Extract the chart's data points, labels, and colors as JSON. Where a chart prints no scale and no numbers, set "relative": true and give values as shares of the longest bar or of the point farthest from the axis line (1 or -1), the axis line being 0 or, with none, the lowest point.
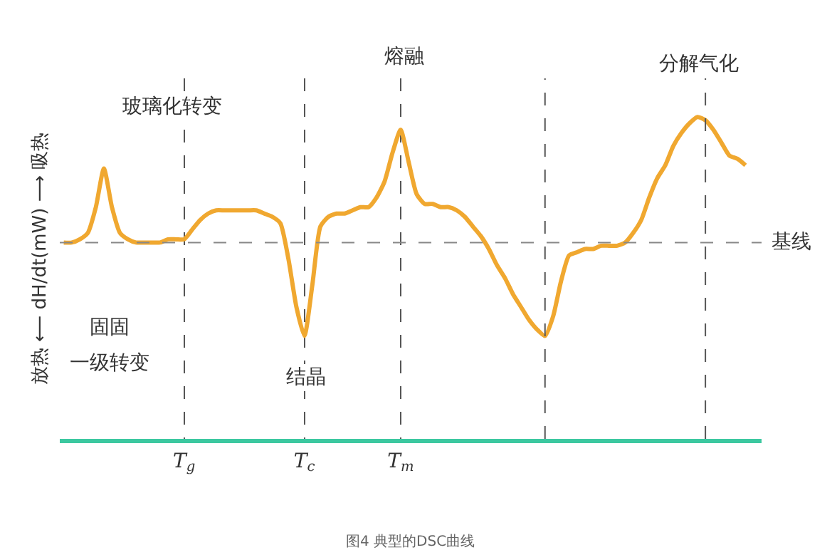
{
  "chart_data": {
    "type": "line",
    "relative": true,
    "ylabel": "放热 ⟵ dH/dt(mW) ⟶ 吸热",
    "categories": [
      null,
      null,
      null,
      null,
      null,
      null,
      null,
      null,
      null,
      null,
      null,
      null,
      null,
      null,
      null,
      "T$_{g}$",
      null,
      null,
      null,
      null,
      null,
      null,
      null,
      null,
      null,
      null,
      null,
      null,
      null,
      null,
      "T$_{c}$",
      null,
      null,
      null,
      null,
      null,
      null,
      null,
      null,
      null,
      null,
      null,
      "T$_{m}$",
      null,
      null,
      null,
      null,
      null,
      null,
      null,
      null,
      null,
      null,
      null,
      null,
      null,
      null,
      null,
      null,
      null,
      null,
      null,
      null,
      null,
      null,
      null,
      null,
      null,
      null,
      null,
      null,
      null,
      null,
      null,
      null,
      null,
      null,
      null,
      null,
      null,
      null,
      null,
      null,
      null,
      null,
      null
    ],
    "series": [
      {
        "color": "#f0a830",
        "values": [
          0.61,
          0.61,
          0.62,
          0.64,
          0.72,
          0.84,
          0.72,
          0.64,
          0.62,
          0.61,
          0.61,
          0.61,
          0.61,
          0.62,
          0.62,
          0.62,
          0.65,
          0.68,
          0.7,
          0.71,
          0.71,
          0.71,
          0.71,
          0.71,
          0.71,
          0.7,
          0.69,
          0.67,
          0.56,
          0.41,
          0.32,
          0.48,
          0.66,
          0.69,
          0.7,
          0.7,
          0.71,
          0.72,
          0.72,
          0.75,
          0.8,
          0.89,
          0.96,
          0.86,
          0.76,
          0.73,
          0.73,
          0.72,
          0.72,
          0.71,
          0.69,
          0.66,
          0.63,
          0.59,
          0.54,
          0.5,
          0.45,
          0.41,
          0.37,
          0.34,
          0.32,
          0.38,
          0.49,
          0.57,
          0.58,
          0.59,
          0.59,
          0.6,
          0.6,
          0.6,
          0.61,
          0.64,
          0.68,
          0.75,
          0.81,
          0.85,
          0.91,
          0.95,
          0.98,
          1.0,
          0.99,
          0.96,
          0.92,
          0.88,
          0.87,
          0.85
        ]
      }
    ],
    "ref_lines": [
      {
        "axis": "y",
        "value": 0.61,
        "label": "基线",
        "color": "#888888",
        "line_style": "dashed"
      }
    ],
    "annotations": [
      "玻璃化转变",
      "熔融",
      "分解气化",
      "固固",
      "一级转变",
      "结晶",
      "图4 典型的DSC曲线"
    ],
    "grid": "x",
    "marker": "none",
    "line_style": "solid"
  }
}
